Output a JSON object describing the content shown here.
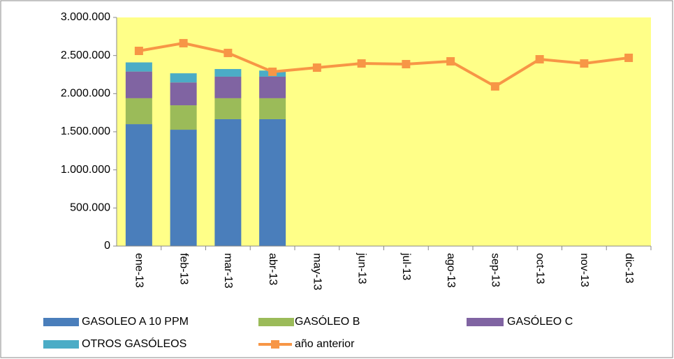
{
  "chart_data": {
    "type": "bar",
    "stacked": true,
    "categories": [
      "ene-13",
      "feb-13",
      "mar-13",
      "abr-13",
      "may-13",
      "jun-13",
      "jul-13",
      "ago-13",
      "sep-13",
      "oct-13",
      "nov-13",
      "dic-13"
    ],
    "series": [
      {
        "name": "GASOLEO A 10 PPM",
        "color": "#4a7ebb",
        "values": [
          1600000,
          1527000,
          1665000,
          1665000,
          null,
          null,
          null,
          null,
          null,
          null,
          null,
          null
        ]
      },
      {
        "name": "GASÓLEO B",
        "color": "#9bbb59",
        "values": [
          340000,
          320000,
          275000,
          275000,
          null,
          null,
          null,
          null,
          null,
          null,
          null,
          null
        ]
      },
      {
        "name": "GASÓLEO C",
        "color": "#8064a2",
        "values": [
          350000,
          300000,
          283000,
          283000,
          null,
          null,
          null,
          null,
          null,
          null,
          null,
          null
        ]
      },
      {
        "name": "OTROS GASÓLEOS",
        "color": "#4bacc6",
        "values": [
          120000,
          120000,
          100000,
          80000,
          null,
          null,
          null,
          null,
          null,
          null,
          null,
          null
        ]
      },
      {
        "name": "año anterior",
        "type": "line",
        "color": "#f79646",
        "values": [
          2561000,
          2662000,
          2534000,
          2287000,
          2341000,
          2396000,
          2387000,
          2424000,
          2095000,
          2451000,
          2396000,
          2470000
        ]
      }
    ],
    "ylim": [
      0,
      3000000
    ],
    "yticks": [
      0,
      {
        "value": 500000,
        "label": "500.000"
      },
      {
        "value": 1000000,
        "label": "1.000.000"
      },
      {
        "value": 1500000,
        "label": "1.500.000"
      },
      {
        "value": 2000000,
        "label": "2.000.000"
      },
      {
        "value": 2500000,
        "label": "2.500.000"
      },
      {
        "value": 3000000,
        "label": "3.000.000"
      }
    ],
    "grid": false,
    "plot_background": "#ffff88",
    "legend": "bottom"
  }
}
